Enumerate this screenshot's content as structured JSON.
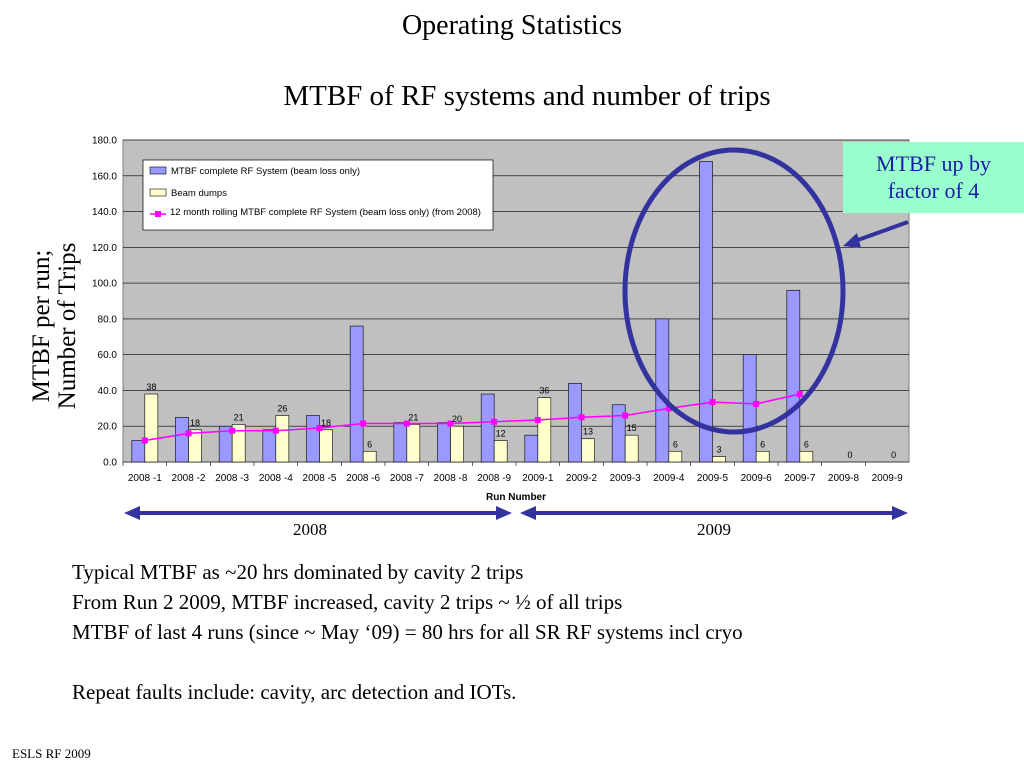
{
  "slide": {
    "title": "Operating Statistics",
    "footer": "ESLS RF 2009"
  },
  "callout": {
    "line1": "MTBF up by",
    "line2": "factor of 4"
  },
  "notes": [
    "Typical MTBF as ~20 hrs dominated by cavity 2 trips",
    "From Run 2 2009, MTBF increased, cavity 2 trips ~ ½ of all trips",
    "MTBF of last 4 runs (since ~ May ‘09) = 80 hrs for all SR RF systems incl cryo",
    "",
    "Repeat faults include: cavity, arc detection and IOTs."
  ],
  "years": {
    "left": "2008",
    "right": "2009"
  },
  "colors": {
    "mtbf_bar": "#9999ff",
    "dumps_bar": "#ffffcc",
    "rolling_line": "#ff00ff",
    "plot_bg": "#c0c0c0",
    "ellipse": "#3333a0",
    "arrow": "#3333a0"
  },
  "chart_data": {
    "type": "bar",
    "title": "MTBF of RF systems and number of trips",
    "ylabel": "MTBF per run;\nNumber of Trips",
    "xlabel": "Run Number",
    "ylim": [
      0,
      180
    ],
    "yticks": [
      "0.0",
      "20.0",
      "40.0",
      "60.0",
      "80.0",
      "100.0",
      "120.0",
      "140.0",
      "160.0",
      "180.0"
    ],
    "grid": true,
    "legend_position": "top-left",
    "categories": [
      "2008 -1",
      "2008 -2",
      "2008 -3",
      "2008 -4",
      "2008 -5",
      "2008 -6",
      "2008 -7",
      "2008 -8",
      "2008 -9",
      "2009-1",
      "2009-2",
      "2009-3",
      "2009-4",
      "2009-5",
      "2009-6",
      "2009-7",
      "2009-8",
      "2009-9"
    ],
    "series": [
      {
        "name": "MTBF complete RF System (beam loss only)",
        "kind": "bar",
        "values": [
          12,
          25,
          20,
          18,
          26,
          76,
          22,
          22,
          38,
          15,
          44,
          32,
          80,
          168,
          60,
          96,
          0,
          0
        ]
      },
      {
        "name": "Beam dumps",
        "kind": "bar",
        "values": [
          38,
          18,
          21,
          26,
          18,
          6,
          21,
          20,
          12,
          36,
          13,
          15,
          6,
          3,
          6,
          6,
          0,
          0
        ],
        "labels": [
          "38",
          "18",
          "21",
          "26",
          "18",
          "6",
          "21",
          "20",
          "12",
          "36",
          "13",
          "15",
          "6",
          "3",
          "6",
          "6",
          "0",
          "0"
        ]
      },
      {
        "name": "12 month rolling MTBF complete RF System (beam loss only) (from 2008)",
        "kind": "line",
        "values": [
          12,
          16,
          17.5,
          17.5,
          19,
          21.5,
          21.5,
          21.5,
          22.5,
          23.5,
          25,
          26,
          30,
          33.5,
          32.5,
          38,
          null,
          null
        ]
      }
    ]
  }
}
